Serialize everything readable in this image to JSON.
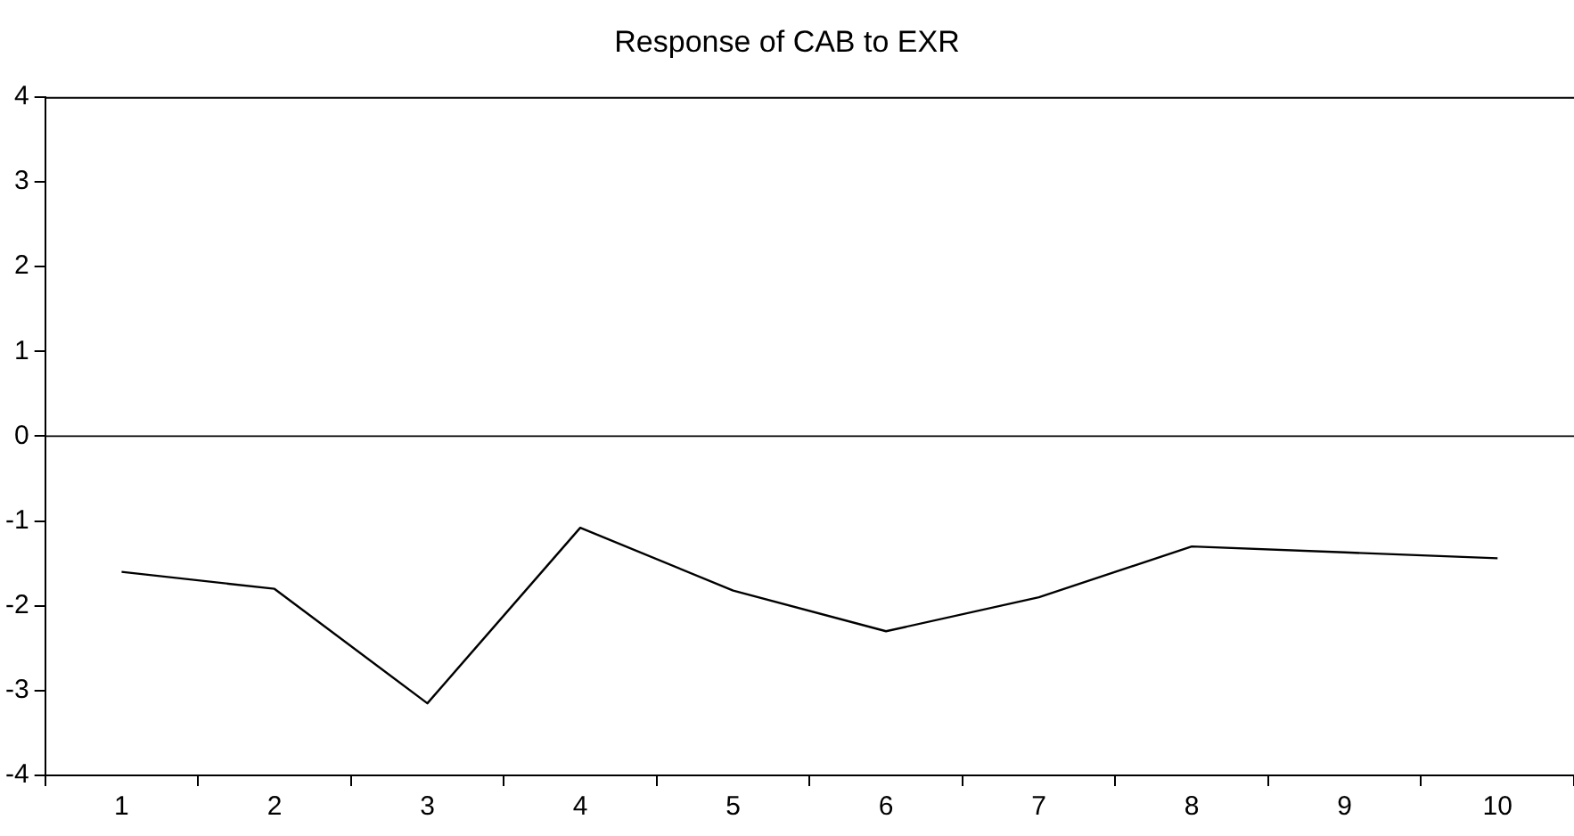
{
  "chart_data": {
    "type": "line",
    "title": "Response of CAB to EXR",
    "categories": [
      "1",
      "2",
      "3",
      "4",
      "5",
      "6",
      "7",
      "8",
      "9",
      "10"
    ],
    "series": [
      {
        "color": "#000000",
        "values": [
          -1.6,
          -1.8,
          -3.15,
          -1.08,
          -1.82,
          -2.3,
          -1.9,
          -1.3,
          -1.37,
          -1.44
        ]
      }
    ],
    "ylim": [
      -4,
      4
    ],
    "yticks": [
      -4,
      -3,
      -2,
      -1,
      0,
      1,
      2,
      3,
      4
    ],
    "ref_lines": [
      {
        "axis": "y",
        "value": 0,
        "color": "#000000"
      }
    ],
    "grid": false,
    "legend": false,
    "marker": "none",
    "line_style": "solid"
  }
}
